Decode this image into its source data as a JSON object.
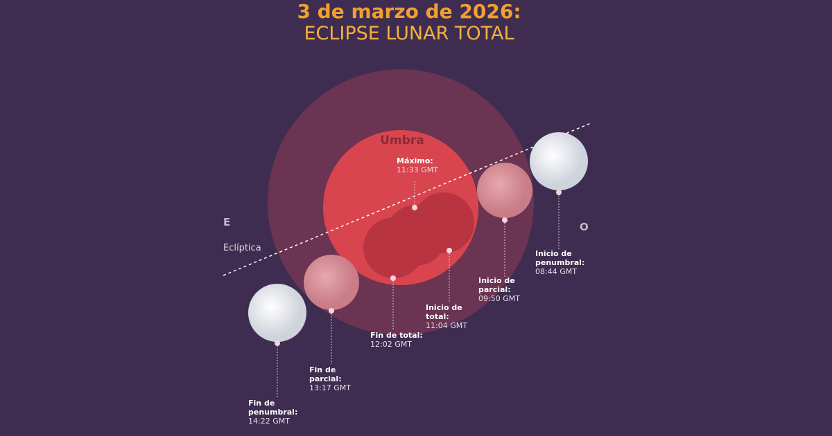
{
  "header": {
    "title": "3 de marzo de 2026:",
    "subtitle": "ECLIPSE LUNAR TOTAL"
  },
  "labels": {
    "umbra": "Umbra",
    "east": "E",
    "west": "O",
    "ecliptic": "Eclíptica"
  },
  "events": [
    {
      "label_lines": [
        "Máximo:"
      ],
      "time": "11:33 GMT"
    },
    {
      "label_lines": [
        "Inicio de",
        "penumbral:"
      ],
      "time": "08:44 GMT"
    },
    {
      "label_lines": [
        "Inicio de",
        "parcial:"
      ],
      "time": "09:50 GMT"
    },
    {
      "label_lines": [
        "Inicio de",
        "total:"
      ],
      "time": "11:04 GMT"
    },
    {
      "label_lines": [
        "Fin de total:"
      ],
      "time": "12:02 GMT"
    },
    {
      "label_lines": [
        "Fin de",
        "parcial:"
      ],
      "time": "13:17 GMT"
    },
    {
      "label_lines": [
        "Fin de",
        "penumbral:"
      ],
      "time": "14:22 GMT"
    }
  ]
}
